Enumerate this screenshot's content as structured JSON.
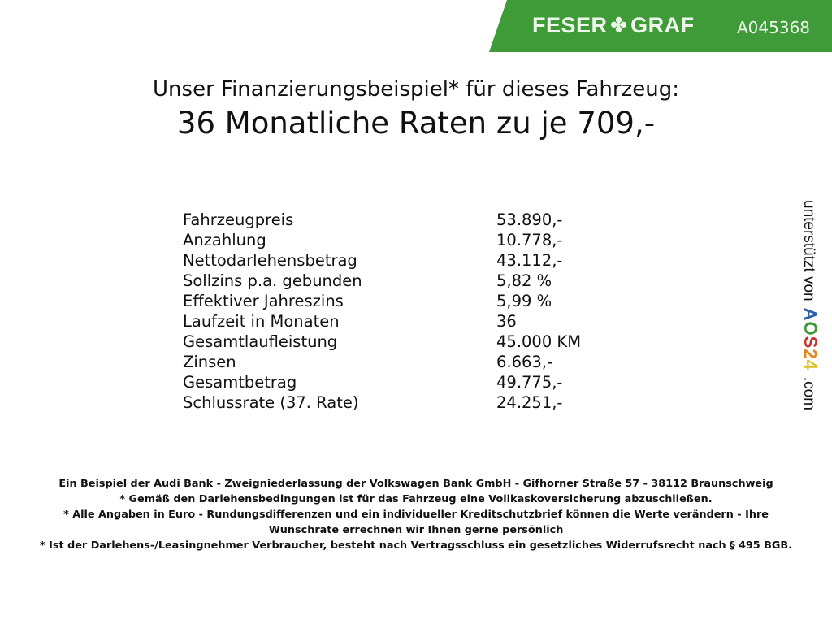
{
  "header": {
    "brand": "FESER GRAF",
    "brand_left": "FESER",
    "brand_right": "GRAF",
    "code": "A045368",
    "color": "#3f9a38"
  },
  "title": {
    "line1": "Unser Finanzierungsbeispiel* für dieses Fahrzeug:",
    "line2": "36 Monatliche Raten zu je 709,-"
  },
  "rows": [
    {
      "label": "Fahrzeugpreis",
      "value": "53.890,-"
    },
    {
      "label": "Anzahlung",
      "value": "10.778,-"
    },
    {
      "label": "Nettodarlehensbetrag",
      "value": "43.112,-"
    },
    {
      "label": "Sollzins p.a. gebunden",
      "value": "5,82 %"
    },
    {
      "label": "Effektiver Jahreszins",
      "value": "5,99 %"
    },
    {
      "label": "Laufzeit in Monaten",
      "value": "36"
    },
    {
      "label": "Gesamtlaufleistung",
      "value": "45.000 KM"
    },
    {
      "label": "Zinsen",
      "value": "6.663,-"
    },
    {
      "label": "Gesamtbetrag",
      "value": "49.775,-"
    },
    {
      "label": "Schlussrate (37. Rate)",
      "value": "24.251,-"
    }
  ],
  "side": {
    "text": "unterstützt von",
    "logo": "AOS24",
    ".com": ".com",
    "suffix": ".com"
  },
  "footer": [
    "Ein Beispiel der Audi Bank - Zweigniederlassung der Volkswagen Bank GmbH - Gifhorner Straße 57 - 38112 Braunschweig",
    "* Gemäß den Darlehensbedingungen ist für das Fahrzeug eine Vollkaskoversicherung abzuschließen.",
    "* Alle Angaben in Euro - Rundungsdifferenzen und ein individueller Kreditschutzbrief können die Werte verändern - Ihre Wunschrate errechnen wir Ihnen gerne persönlich",
    "* Ist der Darlehens-/Leasingnehmer Verbraucher, besteht nach Vertragsschluss ein gesetzliches Widerrufsrecht nach § 495 BGB."
  ]
}
